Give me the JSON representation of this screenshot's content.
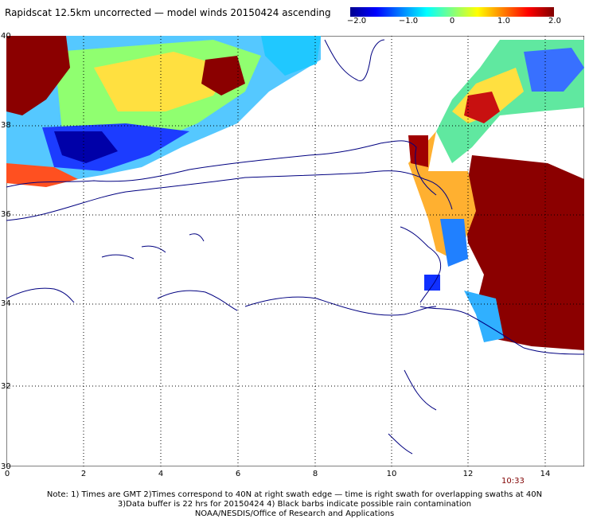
{
  "title": "Rapidscat 12.5km uncorrected — model winds 20150424 ascending",
  "colorbar": {
    "ticks": [
      "−2.0",
      "−1.0",
      "0",
      "1.0",
      "2.0"
    ],
    "range": [
      -2.0,
      2.0
    ],
    "colors": [
      "#00008f",
      "#0000ff",
      "#0080ff",
      "#00ffff",
      "#80ff80",
      "#ffff00",
      "#ff8000",
      "#ff0000",
      "#800000"
    ]
  },
  "axes": {
    "lat_ticks": [
      "40",
      "38",
      "36",
      "34",
      "32",
      "30"
    ],
    "lon_ticks": [
      "0",
      "2",
      "4",
      "6",
      "8",
      "10",
      "12",
      "14"
    ],
    "lat_range": [
      30,
      40
    ],
    "lon_range": [
      0,
      15
    ],
    "grid": "dotted"
  },
  "time_label": "10:33",
  "note": {
    "line1": "Note: 1) Times are GMT 2)Times correspond to 40N at right swath edge — time is right swath for overlapping swaths at 40N",
    "line2": "3)Data buffer is 22 hrs for 20150424 4) Black barbs indicate possible rain contamination",
    "line3": "NOAA/NESDIS/Office of Research and Applications"
  },
  "map_colors": {
    "coast": "#000080",
    "land": "#ffffff",
    "grid": "#000000"
  }
}
